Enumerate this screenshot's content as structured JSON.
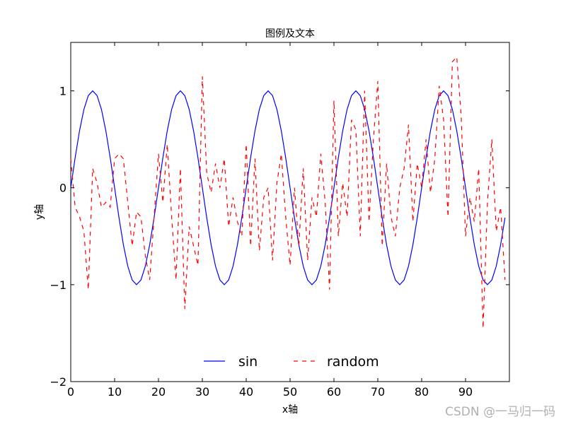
{
  "chart_data": {
    "type": "line",
    "title": "图例及文本",
    "xlabel": "x轴",
    "ylabel": "y轴",
    "xlim": [
      0,
      100
    ],
    "ylim": [
      -2,
      1.5
    ],
    "xticks": [
      "0",
      "10",
      "20",
      "30",
      "40",
      "50",
      "60",
      "70",
      "80",
      "90"
    ],
    "yticks": [
      "−2",
      "−1",
      "0",
      "1"
    ],
    "grid": false,
    "legend": {
      "placement": "lower-center",
      "ncol": 2
    },
    "series": [
      {
        "name": "sin",
        "color": "#0000ff",
        "style": "solid",
        "x": [
          0,
          1,
          2,
          3,
          4,
          5,
          6,
          7,
          8,
          9,
          10,
          11,
          12,
          13,
          14,
          15,
          16,
          17,
          18,
          19,
          20,
          21,
          22,
          23,
          24,
          25,
          26,
          27,
          28,
          29,
          30,
          31,
          32,
          33,
          34,
          35,
          36,
          37,
          38,
          39,
          40,
          41,
          42,
          43,
          44,
          45,
          46,
          47,
          48,
          49,
          50,
          51,
          52,
          53,
          54,
          55,
          56,
          57,
          58,
          59,
          60,
          61,
          62,
          63,
          64,
          65,
          66,
          67,
          68,
          69,
          70,
          71,
          72,
          73,
          74,
          75,
          76,
          77,
          78,
          79,
          80,
          81,
          82,
          83,
          84,
          85,
          86,
          87,
          88,
          89,
          90,
          91,
          92,
          93,
          94,
          95,
          96,
          97,
          98,
          99
        ],
        "values": [
          0,
          0.309,
          0.588,
          0.809,
          0.951,
          1.0,
          0.951,
          0.809,
          0.588,
          0.309,
          0,
          -0.309,
          -0.588,
          -0.809,
          -0.951,
          -1.0,
          -0.951,
          -0.809,
          -0.588,
          -0.309,
          0,
          0.309,
          0.588,
          0.809,
          0.951,
          1.0,
          0.951,
          0.809,
          0.588,
          0.309,
          0,
          -0.309,
          -0.588,
          -0.809,
          -0.951,
          -1.0,
          -0.951,
          -0.809,
          -0.588,
          -0.309,
          0,
          0.309,
          0.588,
          0.809,
          0.951,
          1.0,
          0.951,
          0.809,
          0.588,
          0.309,
          0,
          -0.309,
          -0.588,
          -0.809,
          -0.951,
          -1.0,
          -0.951,
          -0.809,
          -0.588,
          -0.309,
          0,
          0.309,
          0.588,
          0.809,
          0.951,
          1.0,
          0.951,
          0.809,
          0.588,
          0.309,
          0,
          -0.309,
          -0.588,
          -0.809,
          -0.951,
          -1.0,
          -0.951,
          -0.809,
          -0.588,
          -0.309,
          0,
          0.309,
          0.588,
          0.809,
          0.951,
          1.0,
          0.951,
          0.809,
          0.588,
          0.309,
          0,
          -0.309,
          -0.588,
          -0.809,
          -0.951,
          -1.0,
          -0.951,
          -0.809,
          -0.588,
          -0.309
        ]
      },
      {
        "name": "random",
        "color": "#ff0000",
        "style": "dashed",
        "x": [
          0,
          1,
          2,
          3,
          4,
          5,
          6,
          7,
          8,
          9,
          10,
          11,
          12,
          13,
          14,
          15,
          16,
          17,
          18,
          19,
          20,
          21,
          22,
          23,
          24,
          25,
          26,
          27,
          28,
          29,
          30,
          31,
          32,
          33,
          34,
          35,
          36,
          37,
          38,
          39,
          40,
          41,
          42,
          43,
          44,
          45,
          46,
          47,
          48,
          49,
          50,
          51,
          52,
          53,
          54,
          55,
          56,
          57,
          58,
          59,
          60,
          61,
          62,
          63,
          64,
          65,
          66,
          67,
          68,
          69,
          70,
          71,
          72,
          73,
          74,
          75,
          76,
          77,
          78,
          79,
          80,
          81,
          82,
          83,
          84,
          85,
          86,
          87,
          88,
          89,
          90,
          91,
          92,
          93,
          94,
          95,
          96,
          97,
          98,
          99
        ],
        "values": [
          0.3,
          -0.2,
          -0.3,
          -0.45,
          -1.05,
          0.2,
          0.05,
          -0.2,
          -0.15,
          -0.2,
          0.3,
          0.35,
          0.3,
          -0.15,
          -0.6,
          -0.25,
          -0.3,
          -0.7,
          -0.95,
          -0.3,
          0.35,
          -0.15,
          0.45,
          -0.3,
          -0.95,
          0.2,
          -1.25,
          -0.4,
          -0.6,
          -0.8,
          1.15,
          0.15,
          -0.05,
          0.25,
          0.0,
          0.3,
          -0.4,
          -0.1,
          -0.35,
          -0.5,
          0.45,
          -0.6,
          0.3,
          -0.65,
          -0.1,
          0.0,
          -0.75,
          0.05,
          0.35,
          -0.3,
          -0.8,
          0.0,
          -0.6,
          0.2,
          -0.75,
          -0.1,
          -0.3,
          0.35,
          -0.15,
          -1.05,
          0.9,
          -0.5,
          0.05,
          -0.3,
          0.7,
          0.6,
          -0.5,
          1.0,
          -0.35,
          0.5,
          1.1,
          -0.6,
          0.25,
          -0.3,
          -0.5,
          0.0,
          0.2,
          0.65,
          -0.35,
          0.25,
          0.0,
          0.5,
          -0.05,
          0.3,
          1.05,
          0.7,
          -0.3,
          1.3,
          1.35,
          0.75,
          -0.5,
          -0.1,
          -0.35,
          0.2,
          -1.45,
          -0.15,
          0.5,
          -0.45,
          -0.2,
          -0.95
        ]
      }
    ]
  },
  "watermark": "CSDN @一马归一码"
}
